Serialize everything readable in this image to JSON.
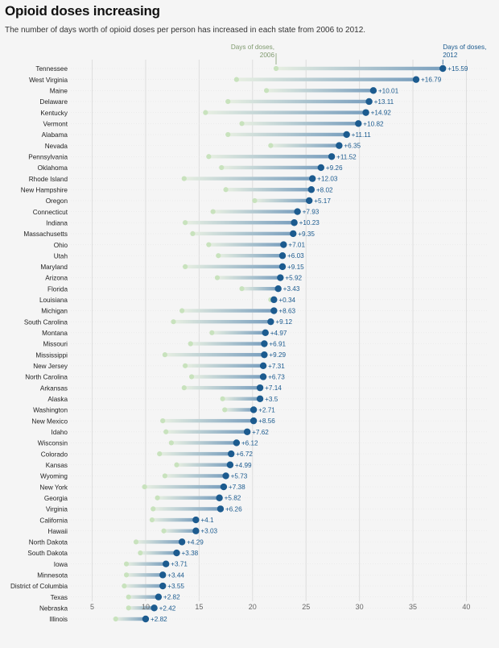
{
  "title": "Opioid doses increasing",
  "subtitle": "The number of days worth of opioid doses per person has increased in each state from 2006 to 2012.",
  "colors": {
    "dot_2012": "#1c5b8f",
    "dot_2006": "#c8e2bd",
    "grid": "#dddddd",
    "label_2012": "#1c5b8f",
    "label_2006": "#7f9a6e"
  },
  "chart_data": {
    "type": "dumbbell",
    "xlim": [
      3,
      42
    ],
    "xticks": [
      5,
      10,
      15,
      20,
      25,
      30,
      35,
      40
    ],
    "grid": true,
    "legend": {
      "start_label": "Days of doses, 2006",
      "end_label": "Days of doses, 2012"
    },
    "rows": [
      {
        "state": "Tennessee",
        "y2006": 22.2,
        "y2012": 37.8,
        "change": "+15.59"
      },
      {
        "state": "West Virginia",
        "y2006": 18.5,
        "y2012": 35.3,
        "change": "+16.79"
      },
      {
        "state": "Maine",
        "y2006": 21.3,
        "y2012": 31.3,
        "change": "+10.01"
      },
      {
        "state": "Delaware",
        "y2006": 17.7,
        "y2012": 30.9,
        "change": "+13.11"
      },
      {
        "state": "Kentucky",
        "y2006": 15.6,
        "y2012": 30.6,
        "change": "+14.92"
      },
      {
        "state": "Vermont",
        "y2006": 19.0,
        "y2012": 29.9,
        "change": "+10.82"
      },
      {
        "state": "Alabama",
        "y2006": 17.7,
        "y2012": 28.8,
        "change": "+11.11"
      },
      {
        "state": "Nevada",
        "y2006": 21.7,
        "y2012": 28.1,
        "change": "+6.35"
      },
      {
        "state": "Pennsylvania",
        "y2006": 15.9,
        "y2012": 27.4,
        "change": "+11.52"
      },
      {
        "state": "Oklahoma",
        "y2006": 17.1,
        "y2012": 26.4,
        "change": "+9.26"
      },
      {
        "state": "Rhode Island",
        "y2006": 13.6,
        "y2012": 25.6,
        "change": "+12.03"
      },
      {
        "state": "New Hampshire",
        "y2006": 17.5,
        "y2012": 25.5,
        "change": "+8.02"
      },
      {
        "state": "Oregon",
        "y2006": 20.2,
        "y2012": 25.3,
        "change": "+5.17"
      },
      {
        "state": "Connecticut",
        "y2006": 16.3,
        "y2012": 24.2,
        "change": "+7.93"
      },
      {
        "state": "Indiana",
        "y2006": 13.7,
        "y2012": 23.9,
        "change": "+10.23"
      },
      {
        "state": "Massachusetts",
        "y2006": 14.4,
        "y2012": 23.8,
        "change": "+9.35"
      },
      {
        "state": "Ohio",
        "y2006": 15.9,
        "y2012": 22.9,
        "change": "+7.01"
      },
      {
        "state": "Utah",
        "y2006": 16.8,
        "y2012": 22.8,
        "change": "+6.03"
      },
      {
        "state": "Maryland",
        "y2006": 13.7,
        "y2012": 22.8,
        "change": "+9.15"
      },
      {
        "state": "Arizona",
        "y2006": 16.7,
        "y2012": 22.6,
        "change": "+5.92"
      },
      {
        "state": "Florida",
        "y2006": 19.0,
        "y2012": 22.4,
        "change": "+3.43"
      },
      {
        "state": "Louisiana",
        "y2006": 21.7,
        "y2012": 22.0,
        "change": "+0.34"
      },
      {
        "state": "Michigan",
        "y2006": 13.4,
        "y2012": 22.0,
        "change": "+8.63"
      },
      {
        "state": "South Carolina",
        "y2006": 12.6,
        "y2012": 21.7,
        "change": "+9.12"
      },
      {
        "state": "Montana",
        "y2006": 16.2,
        "y2012": 21.2,
        "change": "+4.97"
      },
      {
        "state": "Missouri",
        "y2006": 14.2,
        "y2012": 21.1,
        "change": "+6.91"
      },
      {
        "state": "Mississippi",
        "y2006": 11.8,
        "y2012": 21.1,
        "change": "+9.29"
      },
      {
        "state": "New Jersey",
        "y2006": 13.7,
        "y2012": 21.0,
        "change": "+7.31"
      },
      {
        "state": "North Carolina",
        "y2006": 14.3,
        "y2012": 21.0,
        "change": "+6.73"
      },
      {
        "state": "Arkansas",
        "y2006": 13.6,
        "y2012": 20.7,
        "change": "+7.14"
      },
      {
        "state": "Alaska",
        "y2006": 17.2,
        "y2012": 20.7,
        "change": "+3.5"
      },
      {
        "state": "Washington",
        "y2006": 17.4,
        "y2012": 20.1,
        "change": "+2.71"
      },
      {
        "state": "New Mexico",
        "y2006": 11.6,
        "y2012": 20.1,
        "change": "+8.56"
      },
      {
        "state": "Idaho",
        "y2006": 11.9,
        "y2012": 19.5,
        "change": "+7.62"
      },
      {
        "state": "Wisconsin",
        "y2006": 12.4,
        "y2012": 18.5,
        "change": "+6.12"
      },
      {
        "state": "Colorado",
        "y2006": 11.3,
        "y2012": 18.0,
        "change": "+6.72"
      },
      {
        "state": "Kansas",
        "y2006": 12.9,
        "y2012": 17.9,
        "change": "+4.99"
      },
      {
        "state": "Wyoming",
        "y2006": 11.8,
        "y2012": 17.5,
        "change": "+5.73"
      },
      {
        "state": "New York",
        "y2006": 9.9,
        "y2012": 17.3,
        "change": "+7.38"
      },
      {
        "state": "Georgia",
        "y2006": 11.1,
        "y2012": 16.9,
        "change": "+5.82"
      },
      {
        "state": "Virginia",
        "y2006": 10.7,
        "y2012": 17.0,
        "change": "+6.26"
      },
      {
        "state": "California",
        "y2006": 10.6,
        "y2012": 14.7,
        "change": "+4.1"
      },
      {
        "state": "Hawaii",
        "y2006": 11.7,
        "y2012": 14.7,
        "change": "+3.03"
      },
      {
        "state": "North Dakota",
        "y2006": 9.1,
        "y2012": 13.4,
        "change": "+4.29"
      },
      {
        "state": "South Dakota",
        "y2006": 9.5,
        "y2012": 12.9,
        "change": "+3.38"
      },
      {
        "state": "Iowa",
        "y2006": 8.2,
        "y2012": 11.9,
        "change": "+3.71"
      },
      {
        "state": "Minnesota",
        "y2006": 8.2,
        "y2012": 11.6,
        "change": "+3.44"
      },
      {
        "state": "District of Columbia",
        "y2006": 8.0,
        "y2012": 11.6,
        "change": "+3.55"
      },
      {
        "state": "Texas",
        "y2006": 8.4,
        "y2012": 11.2,
        "change": "+2.82"
      },
      {
        "state": "Nebraska",
        "y2006": 8.4,
        "y2012": 10.8,
        "change": "+2.42"
      },
      {
        "state": "Illinois",
        "y2006": 7.2,
        "y2012": 10.0,
        "change": "+2.82"
      }
    ]
  }
}
